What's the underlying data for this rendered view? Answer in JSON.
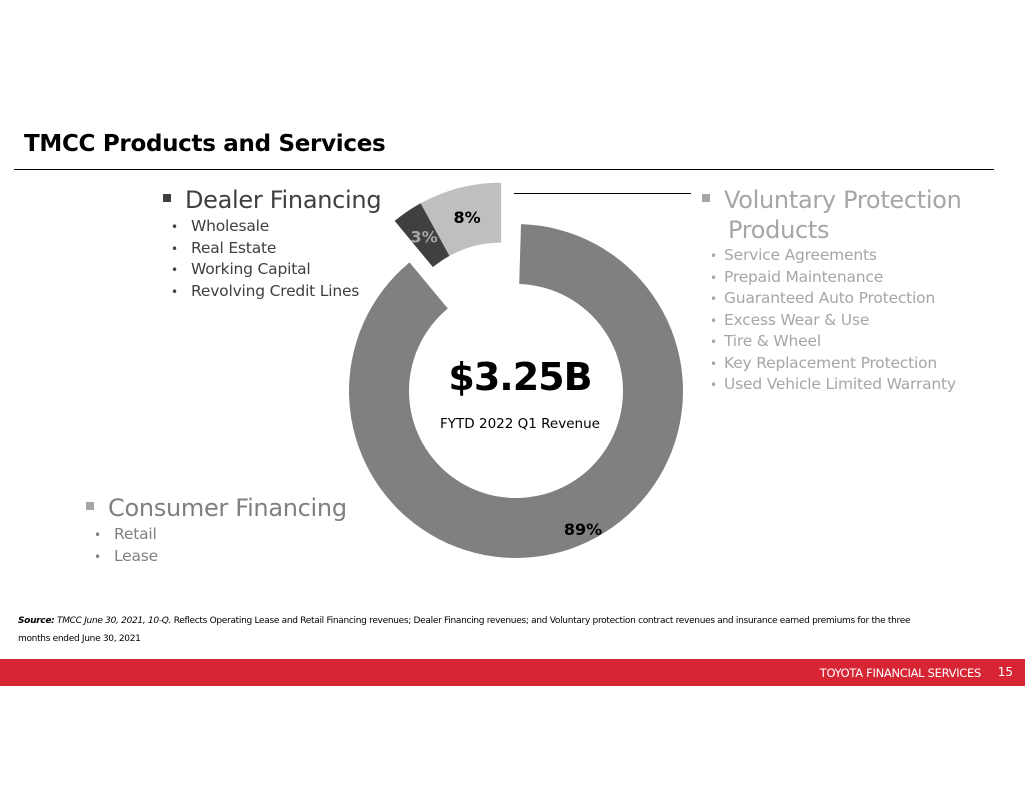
{
  "title": "TMCC Products and Services",
  "dealer": {
    "heading": "Dealer Financing",
    "items": [
      "Wholesale",
      "Real Estate",
      "Working Capital",
      "Revolving Credit Lines"
    ]
  },
  "voluntary": {
    "heading_line1": "Voluntary Protection",
    "heading_line2": "Products",
    "items": [
      "Service Agreements",
      "Prepaid Maintenance",
      "Guaranteed Auto Protection",
      "Excess Wear & Use",
      "Tire & Wheel",
      "Key Replacement Protection",
      "Used Vehicle Limited Warranty"
    ]
  },
  "consumer": {
    "heading": "Consumer Financing",
    "items": [
      "Retail",
      "Lease"
    ]
  },
  "bullet": "•",
  "chart_data": {
    "type": "pie",
    "variant": "donut",
    "center_value": "$3.25B",
    "center_label": "FYTD 2022 Q1 Revenue",
    "slices": [
      {
        "label": "89%",
        "value": 89,
        "color": "#808080",
        "label_color": "#000000",
        "exploded": false
      },
      {
        "label": "3%",
        "value": 3,
        "color": "#404040",
        "label_color": "#a6a6a6",
        "exploded": true
      },
      {
        "label": "8%",
        "value": 8,
        "color": "#bfbfbf",
        "label_color": "#000000",
        "exploded": true
      }
    ]
  },
  "source": {
    "label": "Source:",
    "citation": "TMCC June 30, 2021, 10-Q.",
    "text": "Reflects Operating Lease and Retail Financing revenues; Dealer Financing revenues; and Voluntary protection contract revenues and insurance earned premiums for the three months ended June 30, 2021"
  },
  "footer": {
    "brand": "TOYOTA FINANCIAL SERVICES",
    "page": "15",
    "color": "#d82534"
  }
}
